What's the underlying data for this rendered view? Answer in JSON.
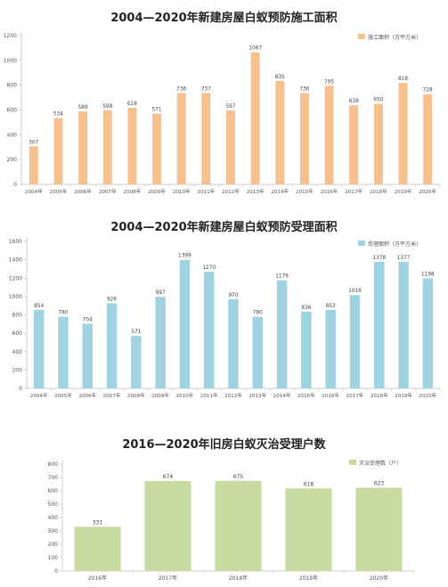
{
  "chart_data": [
    {
      "type": "bar",
      "title": "2004—2020年新建房屋白蚁预防施工面积",
      "legend": "施工面积（万平方米）",
      "legend_position": "top-right",
      "color": "#f6c08f",
      "categories": [
        "2004年",
        "2005年",
        "2006年",
        "2007年",
        "2008年",
        "2009年",
        "2010年",
        "2011年",
        "2012年",
        "2013年",
        "2014年",
        "2015年",
        "2016年",
        "2017年",
        "2018年",
        "2019年",
        "2020年"
      ],
      "values": [
        307,
        534,
        589,
        598,
        618,
        571,
        736,
        737,
        597,
        1067,
        835,
        736,
        795,
        638,
        650,
        818,
        728
      ],
      "ylim": [
        0,
        1200
      ],
      "yticks": [
        0,
        200,
        400,
        600,
        800,
        1000,
        1200
      ],
      "grid": false
    },
    {
      "type": "bar",
      "title": "2004—2020年新建房屋白蚁预防受理面积",
      "legend": "受理面积（万平方米）",
      "legend_position": "top-right",
      "color": "#9fd3e2",
      "categories": [
        "2004年",
        "2005年",
        "2006年",
        "2007年",
        "2008年",
        "2009年",
        "2010年",
        "2011年",
        "2012年",
        "2013年",
        "2014年",
        "2015年",
        "2016年",
        "2017年",
        "2018年",
        "2019年",
        "2020年"
      ],
      "values": [
        854,
        780,
        704,
        926,
        571,
        997,
        1399,
        1270,
        970,
        780,
        1176,
        836,
        853,
        1016,
        1378,
        1377,
        1198
      ],
      "ylim": [
        0,
        1600
      ],
      "yticks": [
        0,
        200,
        400,
        600,
        800,
        1000,
        1200,
        1400,
        1600
      ],
      "grid": false
    },
    {
      "type": "bar",
      "title": "2016—2020年旧房白蚁灭治受理户数",
      "legend": "灭治受理数（户）",
      "legend_position": "top-right",
      "color": "#c8dca2",
      "categories": [
        "2016年",
        "2017年",
        "2018年",
        "2019年",
        "2020年"
      ],
      "values": [
        331,
        674,
        675,
        618,
        623
      ],
      "ylim": [
        0,
        800
      ],
      "yticks": [
        0,
        100,
        200,
        300,
        400,
        500,
        600,
        700,
        800
      ],
      "grid": false
    }
  ]
}
